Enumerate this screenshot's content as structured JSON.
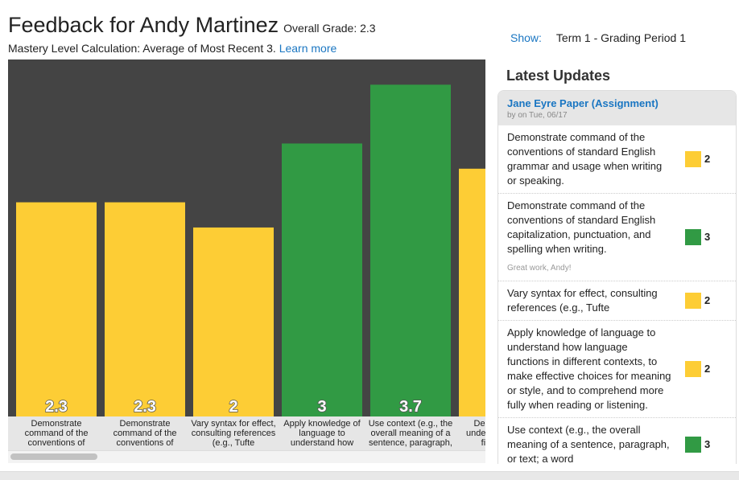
{
  "header": {
    "title": "Feedback for Andy Martinez",
    "overall_grade": "Overall Grade: 2.3",
    "calc": "Mastery Level Calculation: Average of Most Recent 3.",
    "learn_more": "Learn more"
  },
  "show": {
    "label": "Show:",
    "value": "Term 1 - Grading Period 1"
  },
  "colors": {
    "yellow": "#fdcd35",
    "green": "#319a44",
    "chart_bg": "#444444",
    "link": "#1a76c2"
  },
  "chart_data": {
    "type": "bar",
    "ylim": [
      -0.25,
      4
    ],
    "grid": false,
    "categories": [
      "Demonstrate command of the conventions of",
      "Demonstrate command of the conventions of",
      "Vary syntax for effect, consulting references (e.g., Tufte",
      "Apply knowledge of language to understand how",
      "Use context (e.g., the overall meaning of a sentence, paragraph,",
      "Demonstrate understanding of figurative"
    ],
    "values": [
      2.3,
      2.3,
      2,
      3,
      3.7,
      2.7
    ],
    "value_labels": [
      "2.3",
      "2.3",
      "2",
      "3",
      "3.7",
      ""
    ],
    "bar_colors": [
      "#fdcd35",
      "#fdcd35",
      "#fdcd35",
      "#319a44",
      "#319a44",
      "#fdcd35"
    ]
  },
  "updates": {
    "heading": "Latest Updates",
    "assignment": "Jane Eyre Paper (Assignment)",
    "byline": "by on Tue, 06/17",
    "items": [
      {
        "text": "Demonstrate command of the conventions of standard English grammar and usage when writing or speaking.",
        "score": "2",
        "color": "#fdcd35"
      },
      {
        "text": "Demonstrate command of the conventions of standard English capitalization, punctuation, and spelling when writing.",
        "comment": "Great work, Andy!",
        "score": "3",
        "color": "#319a44"
      },
      {
        "text": "Vary syntax for effect, consulting references (e.g., Tufte",
        "score": "2",
        "color": "#fdcd35"
      },
      {
        "text": "Apply knowledge of language to understand how language functions in different contexts, to make effective choices for meaning or style, and to comprehend more fully when reading or listening.",
        "score": "2",
        "color": "#fdcd35"
      },
      {
        "text": "Use context (e.g., the overall meaning of a sentence, paragraph, or text; a word",
        "score": "3",
        "color": "#319a44"
      }
    ]
  }
}
